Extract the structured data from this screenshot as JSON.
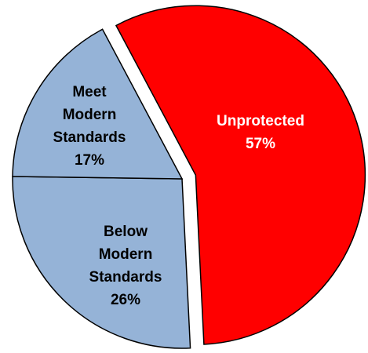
{
  "chart_data": {
    "type": "pie",
    "categories": [
      "Unprotected",
      "Below Modern Standards",
      "Meet Modern Standards"
    ],
    "values": [
      57,
      26,
      17
    ],
    "value_labels": [
      "57%",
      "26%",
      "17%"
    ],
    "colors": [
      "#ff0000",
      "#95b3d7",
      "#95b3d7"
    ],
    "label_colors": [
      "#ffffff",
      "#000000",
      "#000000"
    ],
    "exploded": [
      true,
      false,
      false
    ]
  }
}
